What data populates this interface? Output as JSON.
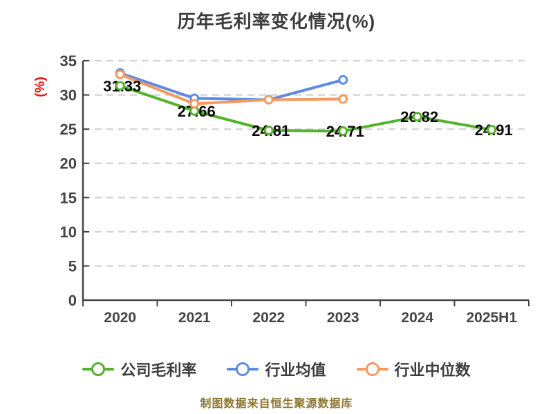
{
  "title": "历年毛利率变化情况(%)",
  "footer_note": "制图数据来自恒生聚源数据库",
  "chart_data": {
    "type": "line",
    "title": "历年毛利率变化情况(%)",
    "xlabel": "",
    "ylabel": "(%)",
    "categories": [
      "2020",
      "2021",
      "2022",
      "2023",
      "2024",
      "2025H1"
    ],
    "ylim": [
      0,
      35
    ],
    "ytick_step": 5,
    "yticks": [
      0,
      5,
      10,
      15,
      20,
      25,
      30,
      35
    ],
    "grid": "horizontal-dashed",
    "legend_position": "bottom",
    "series": [
      {
        "id": "company-gross-margin",
        "name": "公司毛利率",
        "color": "#54b32c",
        "values": [
          31.33,
          27.66,
          24.81,
          24.71,
          26.82,
          24.91
        ],
        "point_labels": [
          "31.33",
          "27.66",
          "24.81",
          "24.71",
          "26.82",
          "24.91"
        ]
      },
      {
        "id": "industry-average",
        "name": "行业均值",
        "color": "#5b8ce2",
        "values": [
          33.2,
          29.5,
          29.3,
          32.2,
          null,
          null
        ],
        "point_labels": null
      },
      {
        "id": "industry-median",
        "name": "行业中位数",
        "color": "#f5995f",
        "values": [
          33.0,
          28.7,
          29.3,
          29.4,
          null,
          null
        ],
        "point_labels": null
      }
    ],
    "colors": {
      "title": "#3c3c3c",
      "axis": "#454545",
      "grid": "#d6d6d6",
      "value_label": "#0a0a0a",
      "ylabel": "#ee1111",
      "footer": "#8e762e",
      "marker_fill": "#ffffff",
      "background": "#ffffff"
    }
  }
}
